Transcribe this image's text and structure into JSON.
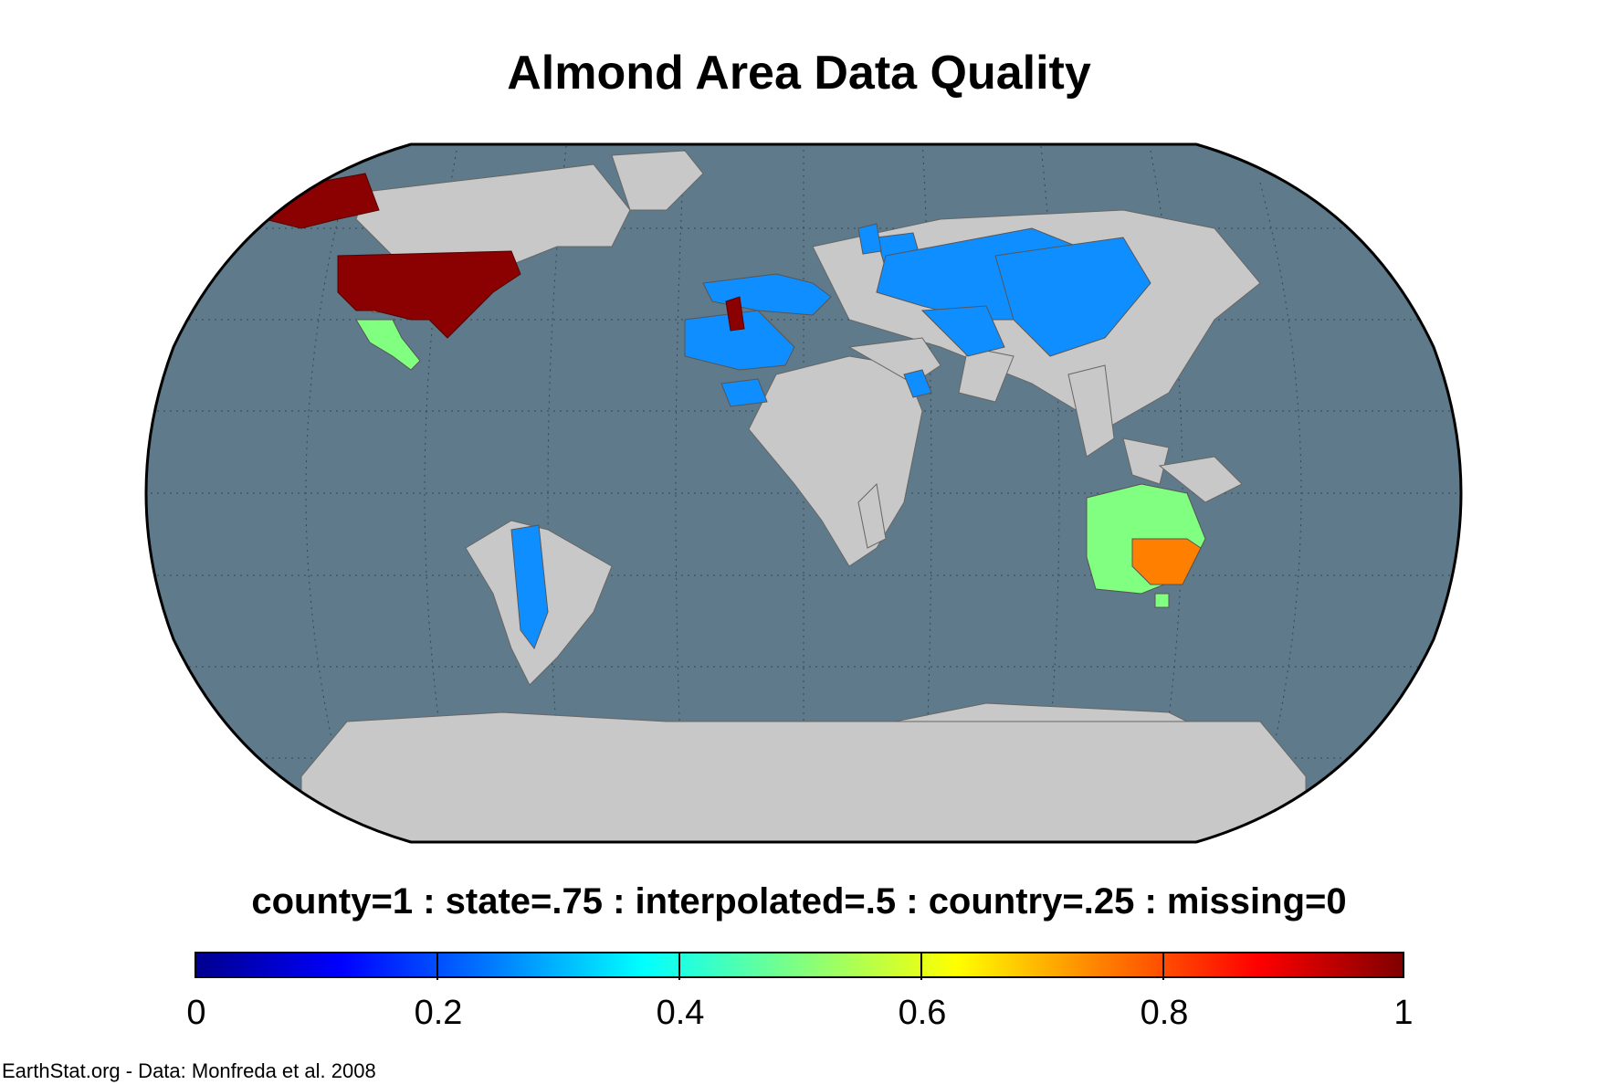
{
  "title": "Almond Area Data Quality",
  "legend": {
    "caption": "county=1 : state=.75 : interpolated=.5 : country=.25 : missing=0",
    "colormap": "jet",
    "range": [
      0,
      1
    ],
    "ticks": [
      "0",
      "0.2",
      "0.4",
      "0.6",
      "0.8",
      "1"
    ]
  },
  "credit": "EarthStat.org - Data: Monfreda et al. 2008",
  "colors": {
    "ocean": "#5f7a8a",
    "land_missing": "#c8c8c8",
    "county": "#8b0000",
    "state": "#ff8000",
    "interpolated": "#80ff80",
    "country": "#0f8fff"
  },
  "map": {
    "projection": "Robinson",
    "graticule": true
  }
}
